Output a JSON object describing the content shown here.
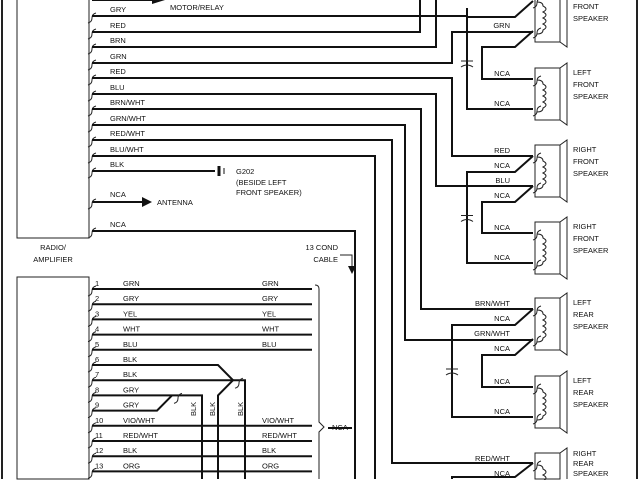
{
  "radio": {
    "label_line1": "RADIO/",
    "label_line2": "AMPLIFIER",
    "motor_relay": "MOTOR/RELAY",
    "wires": [
      "GRY",
      "RED",
      "BRN",
      "GRN",
      "RED",
      "BLU",
      "BRN/WHT",
      "GRN/WHT",
      "RED/WHT",
      "BLU/WHT",
      "BLK"
    ],
    "ground_label": [
      "G202",
      "(BESIDE LEFT",
      "FRONT SPEAKER)"
    ],
    "antenna_wire": "NCA",
    "antenna_label": "ANTENNA",
    "last_wire": "NCA"
  },
  "cable": {
    "label_line1": "13 COND",
    "label_line2": "CABLE",
    "nca": "NCA"
  },
  "connector": {
    "pins": [
      {
        "n": "1",
        "left": "GRN",
        "right": "GRN"
      },
      {
        "n": "2",
        "left": "GRY",
        "right": "GRY"
      },
      {
        "n": "3",
        "left": "YEL",
        "right": "YEL"
      },
      {
        "n": "4",
        "left": "WHT",
        "right": "WHT"
      },
      {
        "n": "5",
        "left": "BLU",
        "right": "BLU"
      },
      {
        "n": "6",
        "left": "BLK",
        "right": ""
      },
      {
        "n": "7",
        "left": "BLK",
        "right": ""
      },
      {
        "n": "8",
        "left": "GRY",
        "right": ""
      },
      {
        "n": "9",
        "left": "GRY",
        "right": ""
      },
      {
        "n": "10",
        "left": "VIO/WHT",
        "right": "VIO/WHT"
      },
      {
        "n": "11",
        "left": "RED/WHT",
        "right": "RED/WHT"
      },
      {
        "n": "12",
        "left": "BLK",
        "right": "BLK"
      },
      {
        "n": "13",
        "left": "ORG",
        "right": "ORG"
      }
    ],
    "blk_labels": [
      "BLK",
      "BLK",
      "BLK"
    ]
  },
  "speakers": [
    {
      "name": [
        "",
        "FRONT",
        "SPEAKER"
      ],
      "t1": "NCA",
      "t2": "GRN",
      "t3": "NCA"
    },
    {
      "name": [
        "LEFT",
        "FRONT",
        "SPEAKER"
      ],
      "t1": "NCA",
      "t2": "NCA"
    },
    {
      "name": [
        "RIGHT",
        "FRONT",
        "SPEAKER"
      ],
      "t1": "RED",
      "t1b": "NCA",
      "t2": "BLU",
      "t2b": "NCA"
    },
    {
      "name": [
        "RIGHT",
        "FRONT",
        "SPEAKER"
      ],
      "t1": "NCA",
      "t2": "NCA"
    },
    {
      "name": [
        "LEFT",
        "REAR",
        "SPEAKER"
      ],
      "t1": "BRN/WHT",
      "t1b": "NCA",
      "t2": "GRN/WHT",
      "t2b": "NCA"
    },
    {
      "name": [
        "LEFT",
        "REAR",
        "SPEAKER"
      ],
      "t1": "NCA",
      "t2": "NCA"
    },
    {
      "name": [
        "RIGHT",
        "REAR",
        "SPEAKER"
      ],
      "t1": "RED/WHT",
      "t1b": "NCA"
    }
  ]
}
